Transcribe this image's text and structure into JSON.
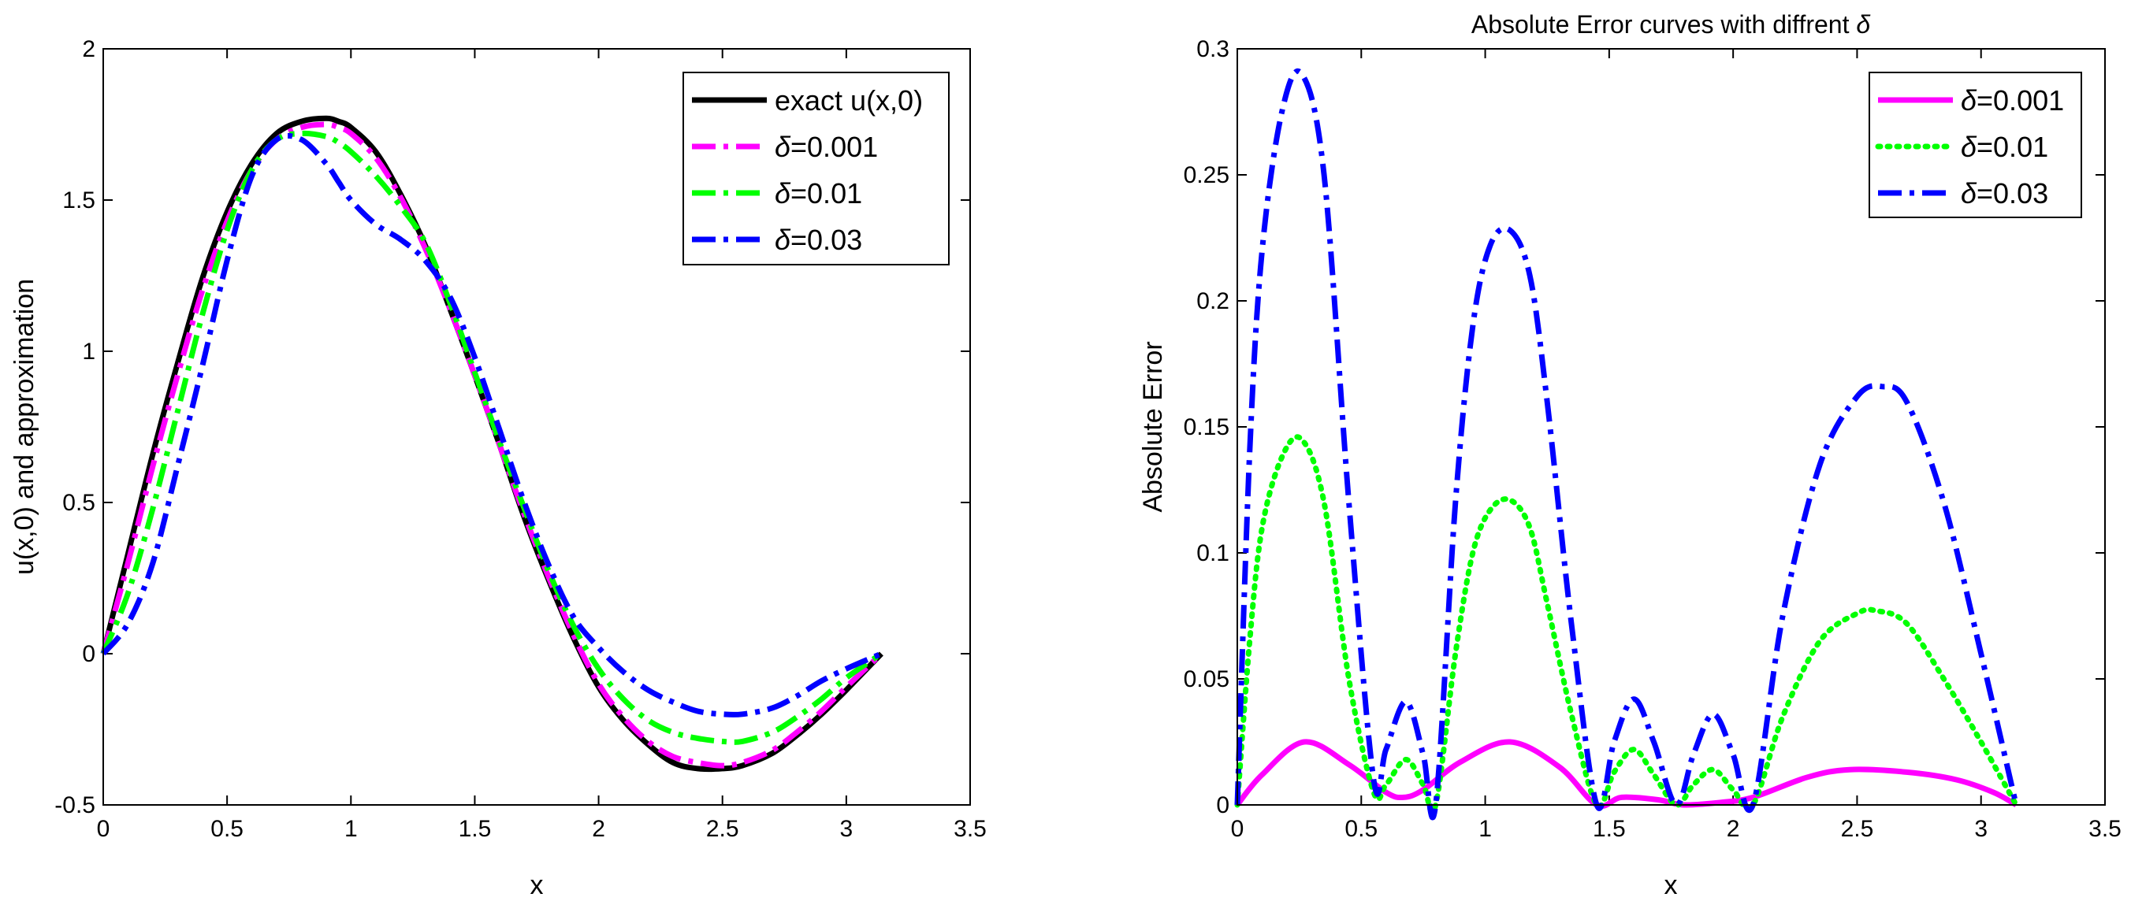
{
  "chart_data": [
    {
      "type": "line",
      "title": "",
      "xlabel": "x",
      "ylabel": "u(x,0) and approximation",
      "xlim": [
        0,
        3.5
      ],
      "ylim": [
        -0.5,
        2
      ],
      "xticks": [
        0,
        0.5,
        1,
        1.5,
        2,
        2.5,
        3,
        3.5
      ],
      "yticks": [
        -0.5,
        0,
        0.5,
        1,
        1.5,
        2
      ],
      "xtick_labels": [
        "0",
        "0.5",
        "1",
        "1.5",
        "2",
        "2.5",
        "3",
        "3.5"
      ],
      "ytick_labels": [
        "-0.5",
        "0",
        "0.5",
        "1",
        "1.5",
        "2"
      ],
      "legend_position": "top-right",
      "series": [
        {
          "name": "exact u(x,0)",
          "label_prefix": "",
          "label_text": "exact u(x,0)",
          "color": "#000000",
          "style": "solid",
          "x": [
            0,
            0.1,
            0.2,
            0.3,
            0.4,
            0.5,
            0.6,
            0.7,
            0.8,
            0.9,
            0.95,
            1.0,
            1.1,
            1.2,
            1.3,
            1.4,
            1.5,
            1.6,
            1.7,
            1.8,
            1.9,
            2.0,
            2.1,
            2.2,
            2.3,
            2.4,
            2.5,
            2.58,
            2.7,
            2.8,
            2.9,
            3.0,
            3.1416
          ],
          "y": [
            0,
            0.33,
            0.66,
            0.96,
            1.24,
            1.46,
            1.62,
            1.72,
            1.76,
            1.77,
            1.76,
            1.74,
            1.66,
            1.52,
            1.35,
            1.14,
            0.92,
            0.69,
            0.45,
            0.24,
            0.05,
            -0.11,
            -0.22,
            -0.3,
            -0.36,
            -0.38,
            -0.38,
            -0.37,
            -0.33,
            -0.27,
            -0.2,
            -0.12,
            0
          ]
        },
        {
          "name": "δ=0.001",
          "label_prefix": "δ",
          "label_text": "=0.001",
          "color": "#ff00ff",
          "style": "dashdot",
          "x": [
            0,
            0.1,
            0.2,
            0.3,
            0.4,
            0.5,
            0.6,
            0.7,
            0.8,
            0.9,
            0.95,
            1.0,
            1.1,
            1.2,
            1.3,
            1.4,
            1.5,
            1.6,
            1.7,
            1.8,
            1.9,
            2.0,
            2.1,
            2.2,
            2.3,
            2.4,
            2.5,
            2.58,
            2.7,
            2.8,
            2.9,
            3.0,
            3.1416
          ],
          "y": [
            0,
            0.3,
            0.62,
            0.92,
            1.2,
            1.43,
            1.6,
            1.7,
            1.74,
            1.75,
            1.74,
            1.72,
            1.64,
            1.51,
            1.34,
            1.14,
            0.92,
            0.69,
            0.46,
            0.25,
            0.06,
            -0.1,
            -0.21,
            -0.29,
            -0.34,
            -0.36,
            -0.37,
            -0.36,
            -0.32,
            -0.26,
            -0.19,
            -0.11,
            0
          ]
        },
        {
          "name": "δ=0.01",
          "label_prefix": "δ",
          "label_text": "=0.01",
          "color": "#00ff00",
          "style": "dashdot",
          "x": [
            0,
            0.1,
            0.2,
            0.3,
            0.4,
            0.5,
            0.6,
            0.7,
            0.8,
            0.9,
            0.95,
            1.0,
            1.1,
            1.2,
            1.3,
            1.4,
            1.5,
            1.6,
            1.7,
            1.8,
            1.9,
            2.0,
            2.1,
            2.2,
            2.3,
            2.4,
            2.5,
            2.58,
            2.7,
            2.8,
            2.9,
            3.0,
            3.1416
          ],
          "y": [
            0,
            0.2,
            0.48,
            0.8,
            1.12,
            1.4,
            1.6,
            1.7,
            1.72,
            1.71,
            1.69,
            1.66,
            1.58,
            1.48,
            1.36,
            1.16,
            0.93,
            0.7,
            0.48,
            0.27,
            0.09,
            -0.05,
            -0.15,
            -0.22,
            -0.26,
            -0.28,
            -0.29,
            -0.29,
            -0.26,
            -0.21,
            -0.15,
            -0.08,
            0
          ]
        },
        {
          "name": "δ=0.03",
          "label_prefix": "δ",
          "label_text": "=0.03",
          "color": "#0000ff",
          "style": "dashdot",
          "x": [
            0,
            0.1,
            0.2,
            0.3,
            0.4,
            0.5,
            0.6,
            0.7,
            0.8,
            0.9,
            0.95,
            1.0,
            1.1,
            1.2,
            1.3,
            1.4,
            1.5,
            1.6,
            1.7,
            1.8,
            1.9,
            2.0,
            2.1,
            2.2,
            2.3,
            2.4,
            2.5,
            2.58,
            2.7,
            2.8,
            2.9,
            3.0,
            3.1416
          ],
          "y": [
            0,
            0.1,
            0.3,
            0.62,
            0.95,
            1.3,
            1.58,
            1.7,
            1.7,
            1.62,
            1.56,
            1.5,
            1.42,
            1.37,
            1.3,
            1.18,
            0.98,
            0.74,
            0.5,
            0.29,
            0.12,
            0.02,
            -0.06,
            -0.12,
            -0.16,
            -0.19,
            -0.2,
            -0.2,
            -0.18,
            -0.14,
            -0.09,
            -0.05,
            0
          ]
        }
      ]
    },
    {
      "type": "line",
      "title": "Absolute Error curves with diffrent δ",
      "title_prefix": "Absolute Error curves with diffrent ",
      "title_symbol": "δ",
      "xlabel": "x",
      "ylabel": "Absolute Error",
      "xlim": [
        0,
        3.5
      ],
      "ylim": [
        0,
        0.3
      ],
      "xticks": [
        0,
        0.5,
        1,
        1.5,
        2,
        2.5,
        3,
        3.5
      ],
      "yticks": [
        0,
        0.05,
        0.1,
        0.15,
        0.2,
        0.25,
        0.3
      ],
      "xtick_labels": [
        "0",
        "0.5",
        "1",
        "1.5",
        "2",
        "2.5",
        "3",
        "3.5"
      ],
      "ytick_labels": [
        "0",
        "0.05",
        "0.1",
        "0.15",
        "0.2",
        "0.25",
        "0.3"
      ],
      "legend_position": "top-right",
      "series": [
        {
          "name": "δ=0.001",
          "label_prefix": "δ",
          "label_text": "=0.001",
          "color": "#ff00ff",
          "style": "solid",
          "x": [
            0,
            0.1,
            0.27,
            0.45,
            0.6,
            0.67,
            0.75,
            0.9,
            1.1,
            1.3,
            1.45,
            1.55,
            1.7,
            1.8,
            1.95,
            2.08,
            2.3,
            2.47,
            2.7,
            2.9,
            3.05,
            3.1416
          ],
          "y": [
            0,
            0.012,
            0.025,
            0.016,
            0.005,
            0.003,
            0.006,
            0.017,
            0.025,
            0.015,
            0.0,
            0.003,
            0.002,
            0.0,
            0.001,
            0.003,
            0.011,
            0.014,
            0.013,
            0.01,
            0.005,
            0
          ]
        },
        {
          "name": "δ=0.01",
          "label_prefix": "δ",
          "label_text": "=0.01",
          "color": "#00ff00",
          "style": "dotted",
          "x": [
            0,
            0.05,
            0.1,
            0.18,
            0.26,
            0.35,
            0.45,
            0.55,
            0.6,
            0.68,
            0.75,
            0.8,
            0.88,
            0.95,
            1.02,
            1.1,
            1.18,
            1.25,
            1.35,
            1.45,
            1.52,
            1.6,
            1.68,
            1.77,
            1.84,
            1.92,
            2.0,
            2.08,
            2.2,
            2.35,
            2.5,
            2.58,
            2.7,
            2.85,
            3.0,
            3.1416
          ],
          "y": [
            0,
            0.065,
            0.11,
            0.138,
            0.145,
            0.12,
            0.05,
            0.005,
            0.008,
            0.018,
            0.008,
            0.0,
            0.06,
            0.1,
            0.117,
            0.121,
            0.11,
            0.08,
            0.035,
            0.0,
            0.013,
            0.022,
            0.012,
            0.0,
            0.008,
            0.014,
            0.006,
            0.0,
            0.035,
            0.065,
            0.076,
            0.077,
            0.072,
            0.05,
            0.025,
            0
          ]
        },
        {
          "name": "δ=0.03",
          "label_prefix": "δ",
          "label_text": "=0.03",
          "color": "#0000ff",
          "style": "dashdot",
          "x": [
            0,
            0.05,
            0.1,
            0.18,
            0.26,
            0.35,
            0.45,
            0.55,
            0.6,
            0.68,
            0.75,
            0.8,
            0.88,
            0.95,
            1.02,
            1.1,
            1.18,
            1.25,
            1.35,
            1.45,
            1.52,
            1.6,
            1.68,
            1.77,
            1.84,
            1.92,
            2.0,
            2.08,
            2.2,
            2.35,
            2.5,
            2.6,
            2.7,
            2.85,
            3.0,
            3.1416
          ],
          "y": [
            0,
            0.14,
            0.22,
            0.275,
            0.29,
            0.25,
            0.12,
            0.01,
            0.022,
            0.041,
            0.02,
            0.0,
            0.12,
            0.19,
            0.222,
            0.228,
            0.21,
            0.16,
            0.07,
            0.0,
            0.025,
            0.042,
            0.025,
            0.0,
            0.02,
            0.036,
            0.02,
            0.0,
            0.075,
            0.135,
            0.162,
            0.166,
            0.16,
            0.12,
            0.06,
            0
          ]
        }
      ]
    }
  ]
}
